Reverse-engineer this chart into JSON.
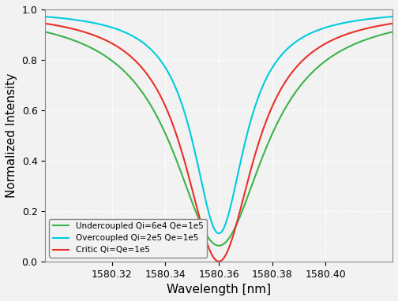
{
  "lambda0": 1580.36,
  "lambda_range": [
    1580.295,
    1580.425
  ],
  "Qi_under": 60000.0,
  "Qe_under": 100000.0,
  "Qi_over": 200000.0,
  "Qe_over": 100000.0,
  "Qi_critic": 100000.0,
  "Qe_critic": 100000.0,
  "color_under": "#3cb34a",
  "color_over": "#00ccdd",
  "color_critic": "#e8302a",
  "xlabel": "Wavelength [nm]",
  "ylabel": "Normalized Intensity",
  "xlim": [
    1580.295,
    1580.425
  ],
  "ylim": [
    0.0,
    1.0
  ],
  "xticks": [
    1580.32,
    1580.34,
    1580.36,
    1580.38,
    1580.4
  ],
  "yticks": [
    0.0,
    0.2,
    0.4,
    0.6,
    0.8,
    1.0
  ],
  "legend_labels": [
    "Undercoupled Qi=6e4 Qe=1e5",
    "Overcoupled Qi=2e5 Qe=1e5",
    "Critic Qi=Qe=1e5"
  ],
  "background_color": "#f2f2f2",
  "grid_color": "#ffffff",
  "linewidth": 1.5
}
